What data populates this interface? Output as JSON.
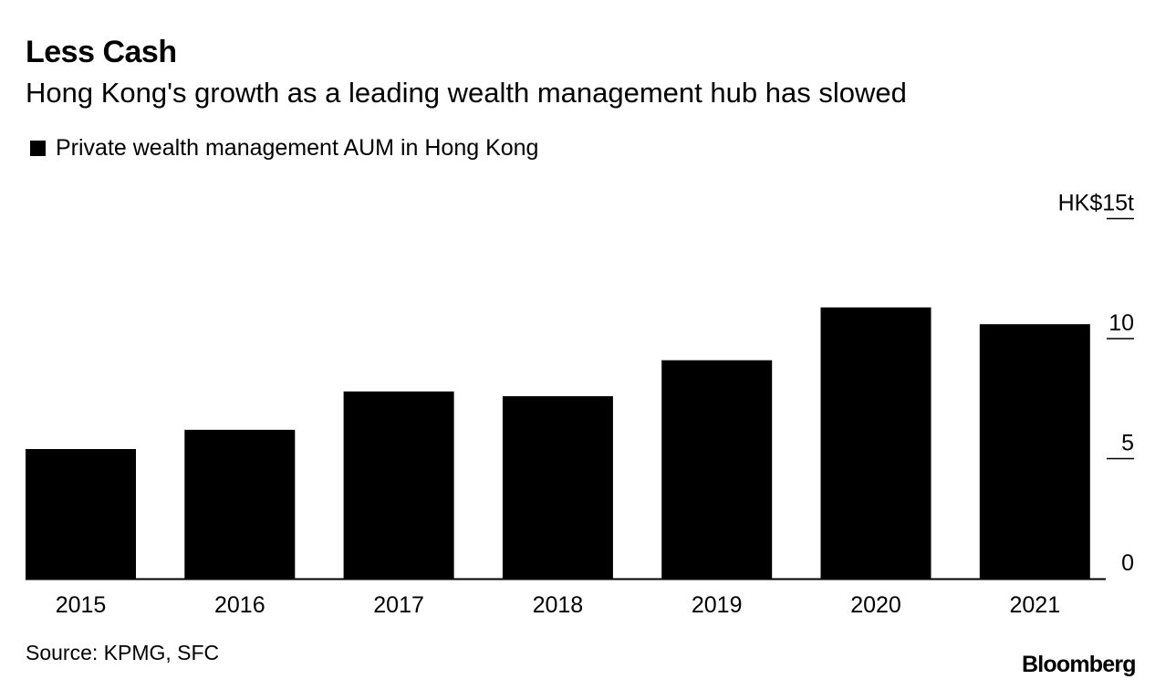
{
  "title": "Less Cash",
  "subtitle": "Hong Kong's growth as a leading wealth management hub has slowed",
  "source": "Source: KPMG, SFC",
  "brand": "Bloomberg",
  "colors": {
    "bar": "#000000",
    "text": "#000000",
    "background": "#ffffff"
  },
  "chart_data": {
    "type": "bar",
    "title": "Less Cash",
    "subtitle": "Hong Kong's growth as a leading wealth management hub has slowed",
    "xlabel": "",
    "ylabel": "",
    "categories": [
      "2015",
      "2016",
      "2017",
      "2018",
      "2019",
      "2020",
      "2021"
    ],
    "series": [
      {
        "name": "Private wealth management AUM in Hong Kong",
        "values": [
          5.4,
          6.2,
          7.8,
          7.6,
          9.1,
          11.3,
          10.6
        ]
      }
    ],
    "ylim": [
      0,
      15
    ],
    "yticks": [
      {
        "value": 0,
        "label": "0"
      },
      {
        "value": 5,
        "label": "5"
      },
      {
        "value": 10,
        "label": "10"
      },
      {
        "value": 15,
        "label": "HK$15t"
      }
    ],
    "y_axis_side": "right",
    "grid": false,
    "legend_position": "top-left"
  }
}
